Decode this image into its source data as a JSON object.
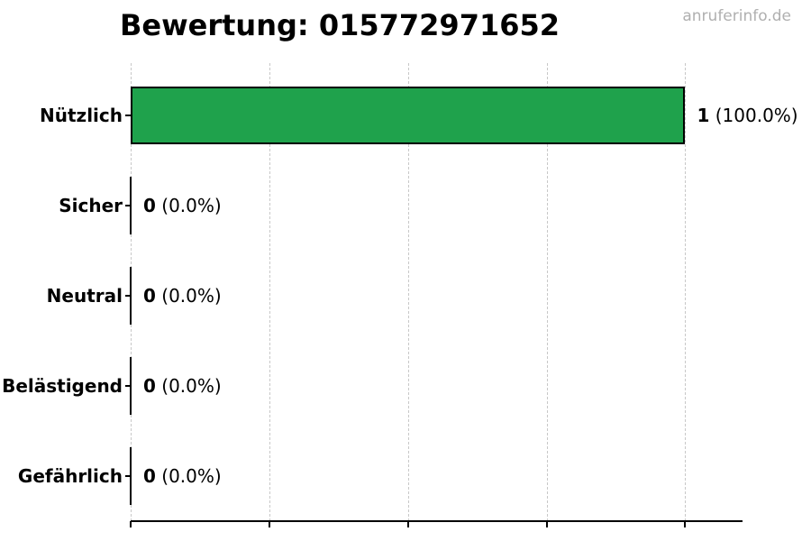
{
  "watermark": {
    "text": "anruferinfo.de"
  },
  "chart_data": {
    "type": "bar",
    "orientation": "horizontal",
    "title": "Bewertung: 015772971652",
    "categories": [
      "Nützlich",
      "Sicher",
      "Neutral",
      "Belästigend",
      "Gefährlich"
    ],
    "values": [
      1,
      0,
      0,
      0,
      0
    ],
    "count_labels": [
      "1",
      "0",
      "0",
      "0",
      "0"
    ],
    "percent_labels": [
      "(100.0%)",
      "(0.0%)",
      "(0.0%)",
      "(0.0%)",
      "(0.0%)"
    ],
    "xlabel": "",
    "ylabel": "",
    "xlim": [
      0,
      1.1
    ],
    "x_ticks": [
      0,
      0.25,
      0.5,
      0.75,
      1.0
    ],
    "x_tick_labels_visible": false,
    "grid": "vertical-dashed",
    "legend": "none",
    "colors": {
      "bar_fill": "#1fa24c",
      "bar_edge": "#000000",
      "grid_line": "#c8c8c8",
      "axis_line": "#000000",
      "text": "#000000",
      "watermark": "#b0b0b0"
    }
  }
}
